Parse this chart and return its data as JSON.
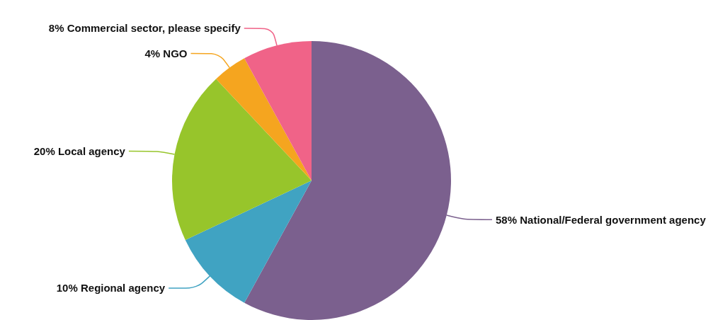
{
  "chart_data": {
    "type": "pie",
    "categories": [
      "National/Federal government agency",
      "Regional agency",
      "Local agency",
      "NGO",
      "Commercial sector, please specify"
    ],
    "values": [
      58,
      10,
      20,
      4,
      8
    ],
    "value_labels": [
      "58%",
      "10%",
      "20%",
      "4%",
      "8%"
    ],
    "colors": [
      "#7b608e",
      "#40a3c2",
      "#97c52b",
      "#f5a51f",
      "#f06388"
    ]
  }
}
